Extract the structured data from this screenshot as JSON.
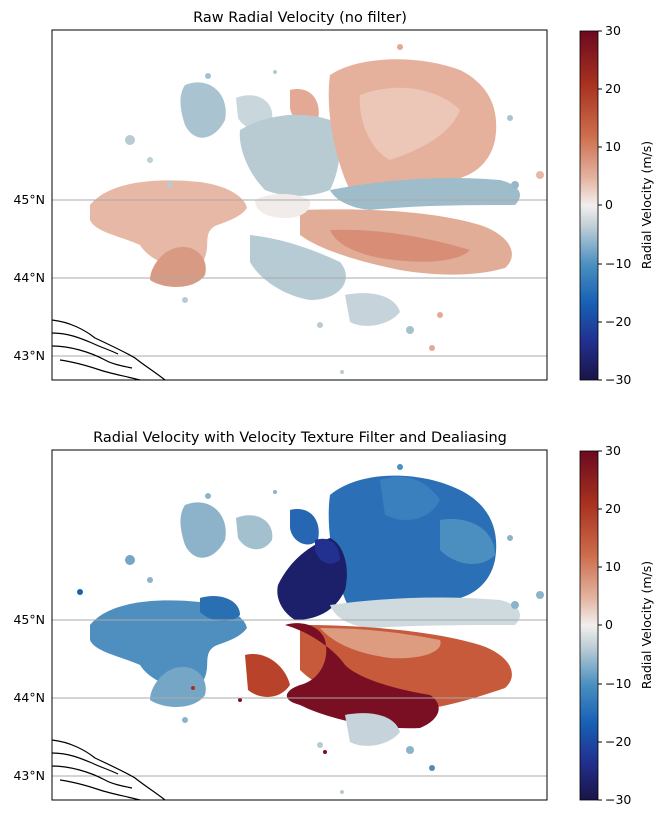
{
  "chart_data": [
    {
      "type": "heatmap",
      "title": "Raw Radial Velocity (no filter)",
      "lat_ticks": [
        "45°N",
        "44°N",
        "43°N"
      ],
      "lat_values": [
        45,
        44,
        43
      ],
      "colorbar": {
        "label": "Radial Velocity (m/s)",
        "range": [
          -30,
          30
        ],
        "ticks": [
          30,
          20,
          10,
          0,
          -10,
          -20,
          -30
        ],
        "tick_labels": [
          "30",
          "20",
          "10",
          "0",
          "−10",
          "−20",
          "−30"
        ],
        "colormap": [
          "#1a1447",
          "#22308f",
          "#1760b4",
          "#4a8fc0",
          "#bfcfd6",
          "#f2efee",
          "#e3b3a0",
          "#cd6d4d",
          "#a8301f",
          "#6b0a1f"
        ]
      },
      "gridlines": "latitude",
      "description_values": "mostly weak velocities (-10 to +10 m/s)"
    },
    {
      "type": "heatmap",
      "title": "Radial Velocity with Velocity Texture Filter and Dealiasing",
      "lat_ticks": [
        "45°N",
        "44°N",
        "43°N"
      ],
      "lat_values": [
        45,
        44,
        43
      ],
      "colorbar": {
        "label": "Radial Velocity (m/s)",
        "range": [
          -30,
          30
        ],
        "ticks": [
          30,
          20,
          10,
          0,
          -10,
          -20,
          -30
        ],
        "tick_labels": [
          "30",
          "20",
          "10",
          "0",
          "−10",
          "−20",
          "−30"
        ]
      },
      "gridlines": "latitude"
    }
  ]
}
